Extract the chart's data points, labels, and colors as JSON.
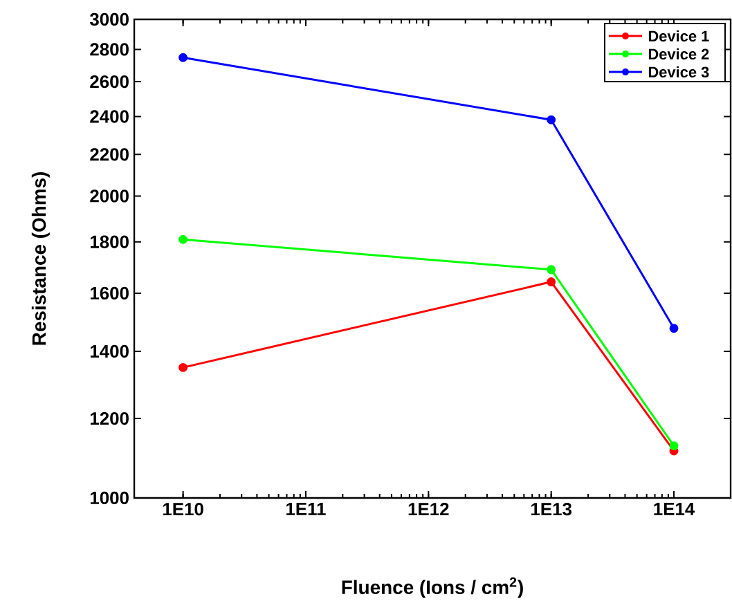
{
  "chart_data": {
    "type": "line",
    "xlabel": "Fluence (Ions / cm$^{2}$)",
    "ylabel": "Resistance (Ohms)",
    "x": [
      10000000000.0,
      10000000000000.0,
      100000000000000.0
    ],
    "series": [
      {
        "name": "Device 1",
        "color": "#ff0000",
        "values": [
          1349,
          1642,
          1114
        ]
      },
      {
        "name": "Device 2",
        "color": "#00ff00",
        "values": [
          1810,
          1689,
          1127
        ]
      },
      {
        "name": "Device 3",
        "color": "#0000ff",
        "values": [
          2748,
          2382,
          1476
        ]
      }
    ],
    "log": "xy",
    "xlim": [
      4000000000.0,
      290000000000000.0
    ],
    "ylim": [
      1000,
      3000
    ],
    "xticks": [
      {
        "value": 10000000000.0,
        "label": "1E10"
      },
      {
        "value": 100000000000.0,
        "label": "1E11"
      },
      {
        "value": 1000000000000.0,
        "label": "1E12"
      },
      {
        "value": 10000000000000.0,
        "label": "1E13"
      },
      {
        "value": 100000000000000.0,
        "label": "1E14"
      }
    ],
    "yticks": [
      1000,
      1200,
      1400,
      1600,
      1800,
      2000,
      2200,
      2400,
      2600,
      2800,
      3000
    ],
    "grid": false,
    "legend": "top right",
    "marker": "circle",
    "line_style": "solid"
  }
}
